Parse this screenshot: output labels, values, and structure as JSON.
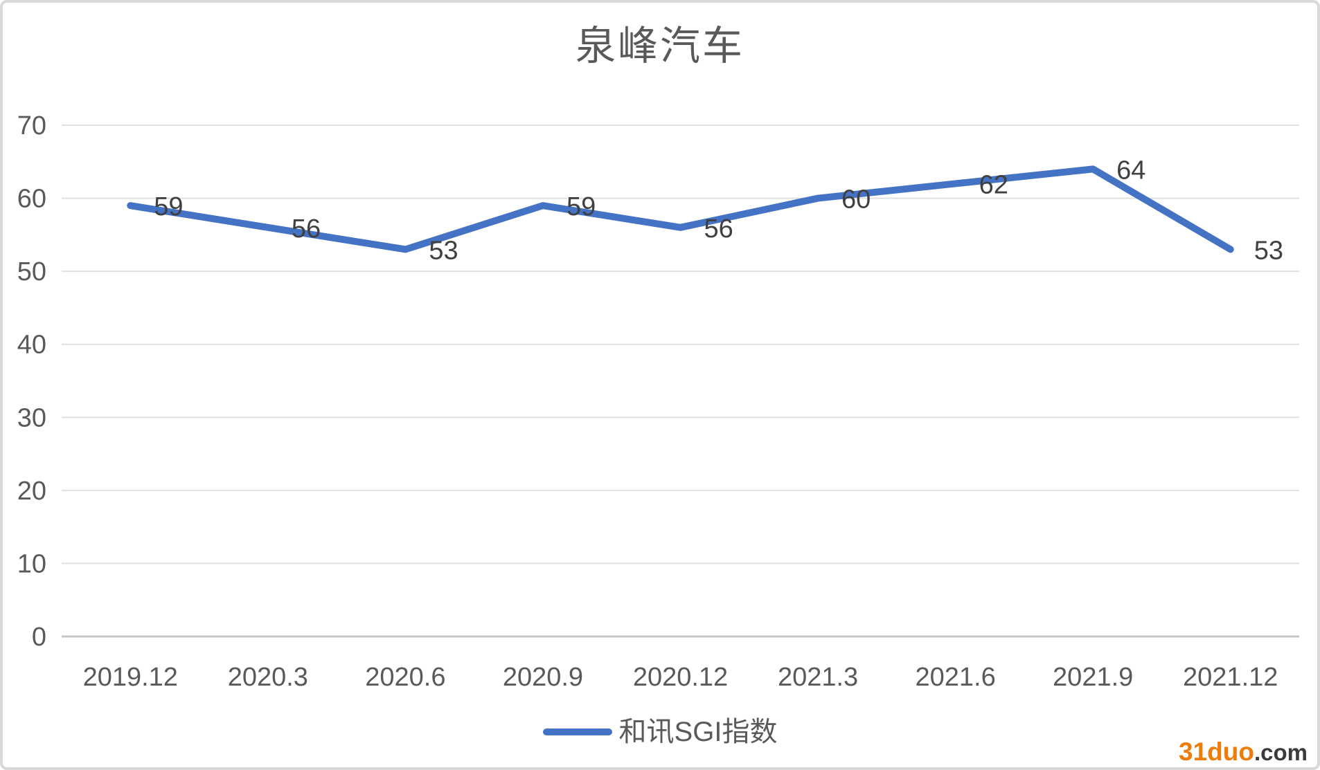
{
  "title": "泉峰汽车",
  "legend": {
    "label": "和讯SGI指数",
    "color": "#4472C4"
  },
  "watermark": {
    "brand": "31duo",
    "suffix": ".com"
  },
  "colors": {
    "line": "#4472C4",
    "gridline": "#E0E0E0",
    "axis_line": "#C6C6C6",
    "tick_text": "#595959",
    "data_label": "#404040",
    "title_text": "#595959",
    "border": "#D9D9D9",
    "watermark_orange": "#EE7C08",
    "watermark_dark": "#3B3B3B"
  },
  "chart_data": {
    "type": "line",
    "title": "泉峰汽车",
    "categories": [
      "2019.12",
      "2020.3",
      "2020.6",
      "2020.9",
      "2020.12",
      "2021.3",
      "2021.6",
      "2021.9",
      "2021.12"
    ],
    "series": [
      {
        "name": "和讯SGI指数",
        "color": "#4472C4",
        "values": [
          59,
          56,
          53,
          59,
          56,
          60,
          62,
          64,
          53
        ]
      }
    ],
    "xlabel": "",
    "ylabel": "",
    "ylim": [
      0,
      70
    ],
    "yticks": [
      0,
      10,
      20,
      30,
      40,
      50,
      60,
      70
    ],
    "grid": "horizontal",
    "legend_position": "bottom",
    "data_labels": true,
    "data_label_position": "right"
  }
}
